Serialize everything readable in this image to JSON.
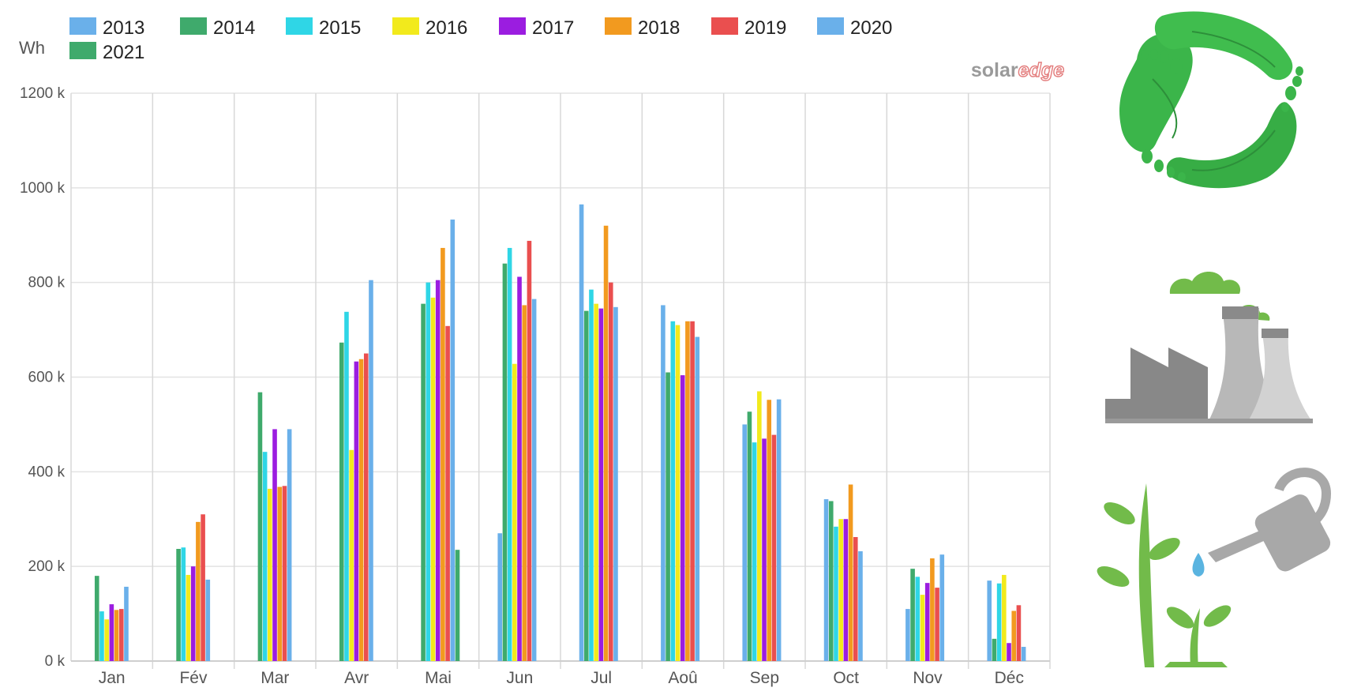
{
  "chart_data": {
    "type": "bar",
    "ylabel": "Wh",
    "ylim": [
      0,
      1200000
    ],
    "yticks": [
      {
        "value": 0,
        "label": "0 k"
      },
      {
        "value": 200000,
        "label": "200 k"
      },
      {
        "value": 400000,
        "label": "400 k"
      },
      {
        "value": 600000,
        "label": "600 k"
      },
      {
        "value": 800000,
        "label": "800 k"
      },
      {
        "value": 1000000,
        "label": "1000 k"
      },
      {
        "value": 1200000,
        "label": "1200 k"
      }
    ],
    "grid": true,
    "legend_position": "top",
    "categories": [
      "Jan",
      "Fév",
      "Mar",
      "Avr",
      "Mai",
      "Jun",
      "Jul",
      "Aoû",
      "Sep",
      "Oct",
      "Nov",
      "Déc"
    ],
    "series": [
      {
        "name": "2013",
        "color": "#6ab0ea",
        "values": [
          null,
          null,
          null,
          null,
          null,
          270000,
          965000,
          752000,
          500000,
          342000,
          110000,
          170000
        ]
      },
      {
        "name": "2014",
        "color": "#3faa6c",
        "values": [
          180000,
          237000,
          568000,
          673000,
          755000,
          840000,
          740000,
          610000,
          527000,
          338000,
          195000,
          47000
        ]
      },
      {
        "name": "2015",
        "color": "#2fd6e6",
        "values": [
          105000,
          240000,
          442000,
          738000,
          800000,
          873000,
          785000,
          718000,
          462000,
          284000,
          178000,
          164000
        ]
      },
      {
        "name": "2016",
        "color": "#f2ea1c",
        "values": [
          88000,
          182000,
          364000,
          446000,
          768000,
          628000,
          755000,
          710000,
          570000,
          300000,
          140000,
          182000
        ]
      },
      {
        "name": "2017",
        "color": "#9b1de0",
        "values": [
          120000,
          200000,
          490000,
          633000,
          805000,
          812000,
          745000,
          604000,
          470000,
          300000,
          165000,
          38000
        ]
      },
      {
        "name": "2018",
        "color": "#f29a1f",
        "values": [
          108000,
          294000,
          368000,
          638000,
          873000,
          752000,
          920000,
          718000,
          552000,
          373000,
          217000,
          106000
        ]
      },
      {
        "name": "2019",
        "color": "#ea4f4f",
        "values": [
          110000,
          310000,
          370000,
          650000,
          708000,
          888000,
          800000,
          718000,
          478000,
          262000,
          155000,
          118000
        ]
      },
      {
        "name": "2020",
        "color": "#6ab0ea",
        "values": [
          157000,
          172000,
          490000,
          805000,
          933000,
          765000,
          748000,
          685000,
          553000,
          232000,
          225000,
          30000
        ]
      },
      {
        "name": "2021",
        "color": "#3faa6c",
        "values": [
          null,
          null,
          null,
          null,
          235000,
          null,
          null,
          null,
          null,
          null,
          null,
          null
        ]
      }
    ]
  },
  "logo": {
    "part1": "solar",
    "part2": "edge"
  },
  "icons": {
    "top": "eco-footprint-recycle-icon",
    "middle": "factory-emissions-icon",
    "bottom": "plant-watering-can-icon",
    "colors": {
      "leaf": "#3bb54a",
      "plant": "#72bb4a",
      "grey": "#a8a8a8"
    }
  }
}
